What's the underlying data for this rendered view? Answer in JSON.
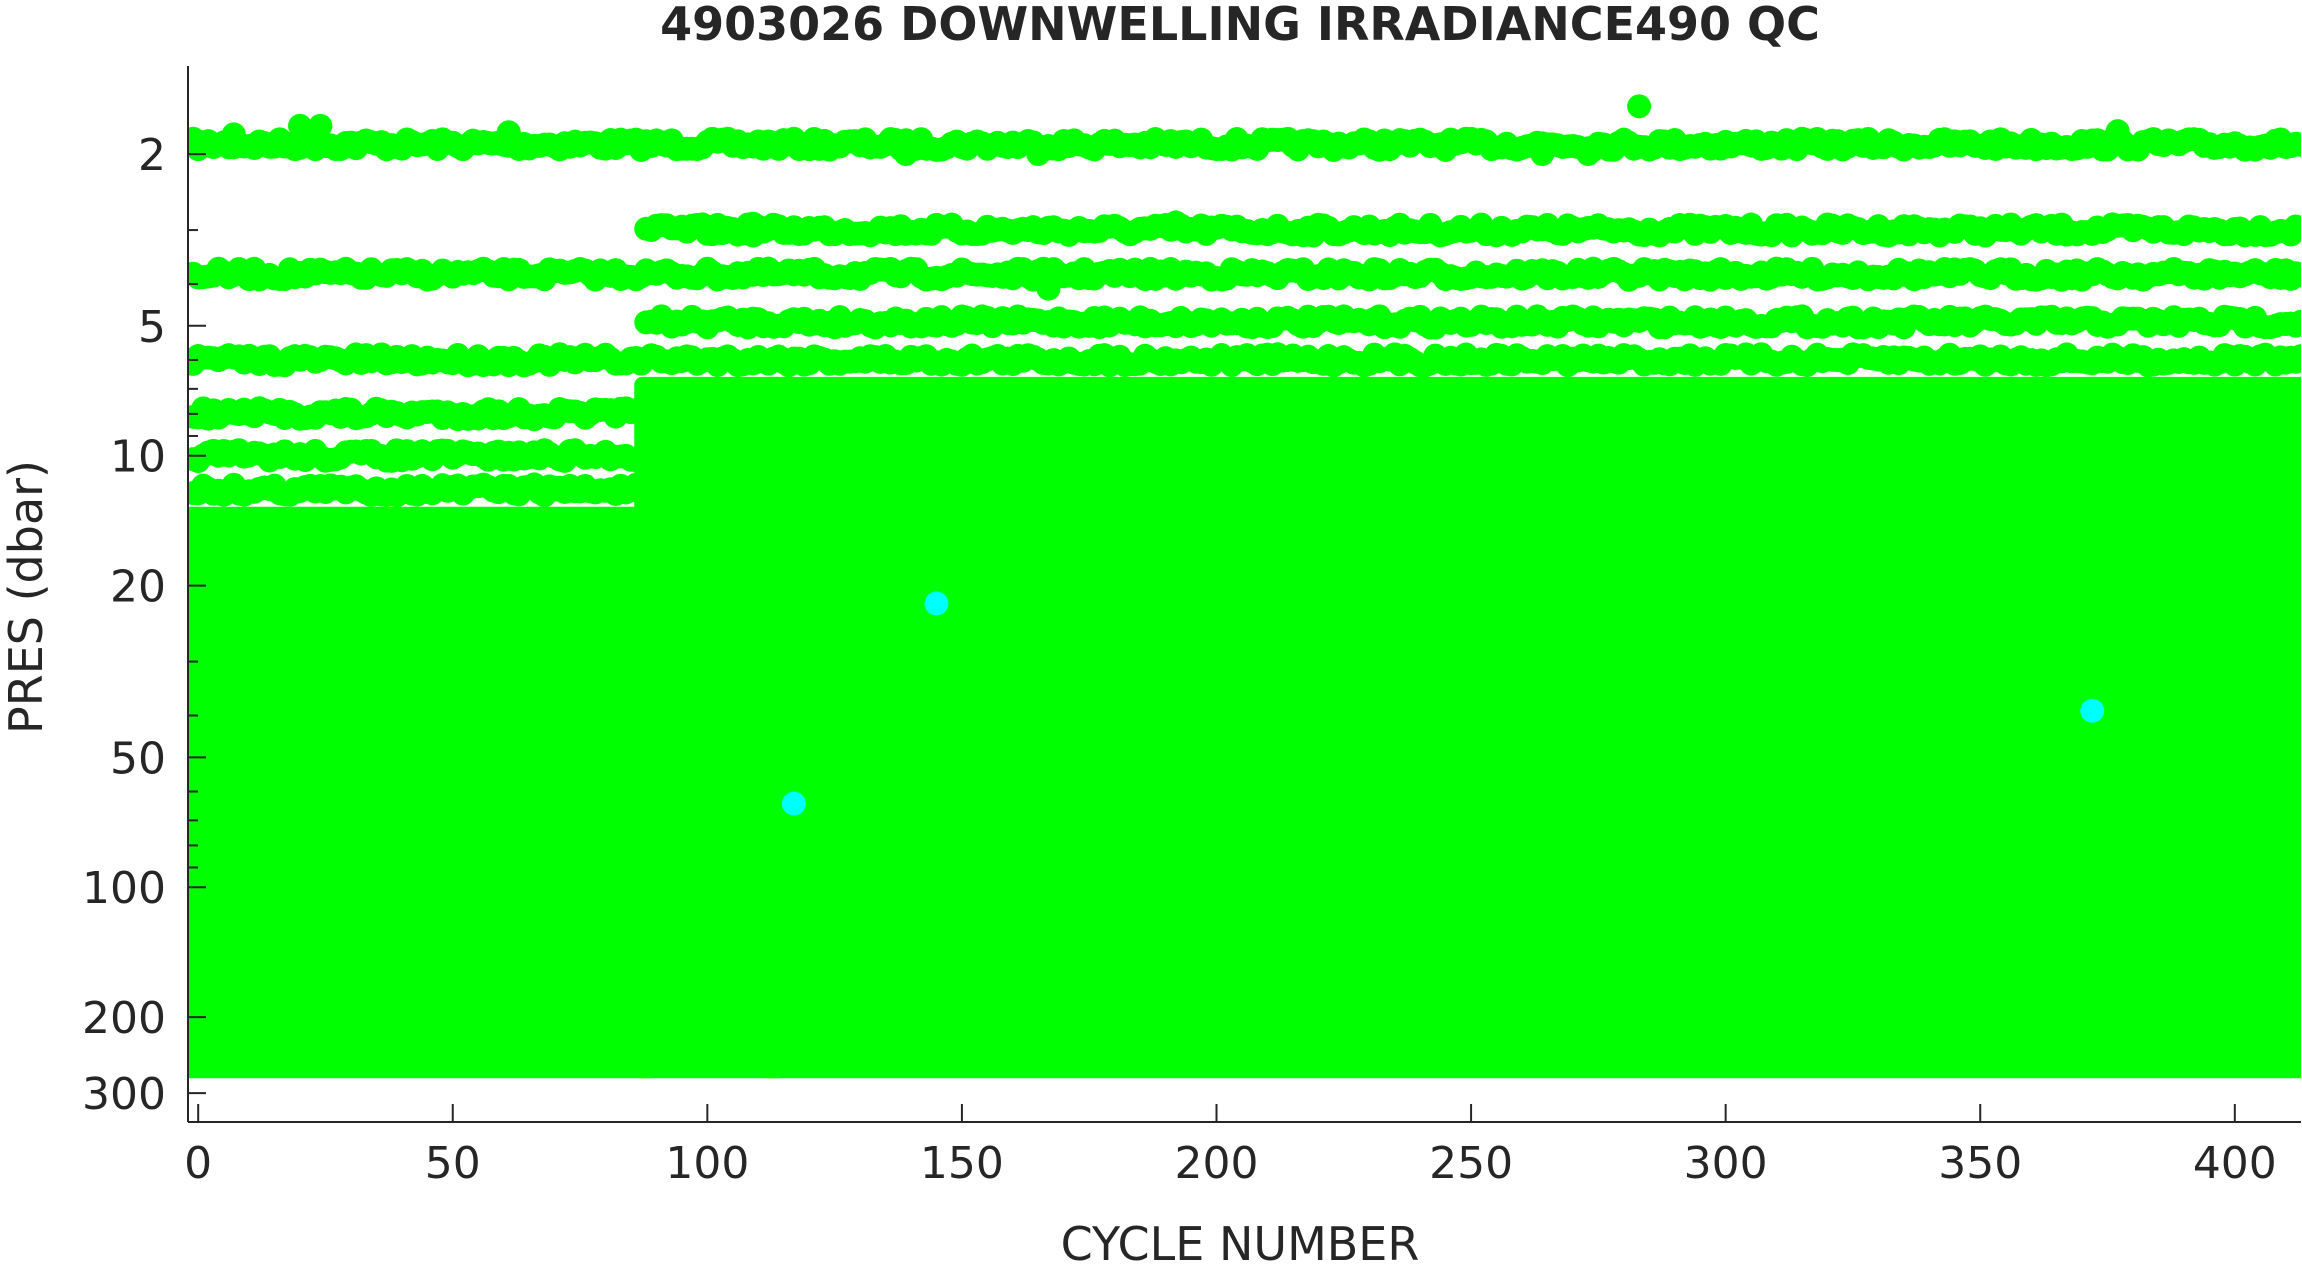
{
  "chart_data": {
    "type": "scatter",
    "title": "4903026  DOWNWELLING IRRADIANCE490 QC",
    "xlabel": "CYCLE NUMBER",
    "ylabel": "PRES (dbar)",
    "xlim": [
      -2,
      413
    ],
    "ylim": [
      1.25,
      350
    ],
    "y_scale": "log",
    "y_reversed": true,
    "x_ticks": [
      0,
      50,
      100,
      150,
      200,
      250,
      300,
      350,
      400
    ],
    "x_tick_labels": [
      "0",
      "50",
      "100",
      "150",
      "200",
      "250",
      "300",
      "350",
      "400"
    ],
    "y_ticks": [
      2,
      5,
      10,
      20,
      50,
      100,
      200,
      300
    ],
    "y_tick_labels": [
      "2",
      "5",
      "10",
      "20",
      "50",
      "100",
      "200",
      "300"
    ],
    "grid": false,
    "legend": "none",
    "colors": {
      "good": "#00ff00",
      "probably_good": "#00ffff"
    },
    "series": [
      {
        "qc_flag": "1",
        "color": "#00ff00",
        "shallow_bands": [
          {
            "pres": 1.9,
            "x": [
              -1,
              413
            ]
          },
          {
            "pres": 3.0,
            "x": [
              88,
              413
            ]
          },
          {
            "pres": 3.8,
            "x": [
              -1,
              413
            ]
          },
          {
            "pres": 4.9,
            "x": [
              88,
              413
            ]
          },
          {
            "pres": 6.0,
            "x": [
              -1,
              413
            ]
          },
          {
            "pres": 8.0,
            "x": [
              -1,
              88
            ]
          },
          {
            "pres": 10.0,
            "x": [
              -1,
              88
            ]
          },
          {
            "pres": 12.0,
            "x": [
              -1,
              88
            ]
          }
        ],
        "dense_blocks": [
          {
            "x": [
              -1,
              88
            ],
            "pres": [
              14,
              260
            ]
          },
          {
            "x": [
              88,
              113
            ],
            "pres": [
              7,
              260
            ]
          },
          {
            "x": [
              113,
              413
            ],
            "pres": [
              7,
              260
            ]
          }
        ],
        "points": [
          {
            "x": 283,
            "y": 1.55
          },
          {
            "x": 20,
            "y": 1.72
          },
          {
            "x": 24,
            "y": 1.72
          },
          {
            "x": 61,
            "y": 1.78
          },
          {
            "x": 7,
            "y": 1.8
          },
          {
            "x": 377,
            "y": 1.77
          },
          {
            "x": 139,
            "y": 2.0
          },
          {
            "x": 165,
            "y": 2.0
          },
          {
            "x": 264,
            "y": 2.0
          },
          {
            "x": 273,
            "y": 2.0
          },
          {
            "x": 25,
            "y": 3.75
          },
          {
            "x": 167,
            "y": 4.1
          },
          {
            "x": 192,
            "y": 2.88
          },
          {
            "x": 109,
            "y": 2.9
          }
        ]
      },
      {
        "qc_flag": "2",
        "color": "#00ffff",
        "points": [
          {
            "x": 145,
            "y": 22
          },
          {
            "x": 117,
            "y": 64
          },
          {
            "x": 372,
            "y": 39
          }
        ]
      }
    ]
  }
}
